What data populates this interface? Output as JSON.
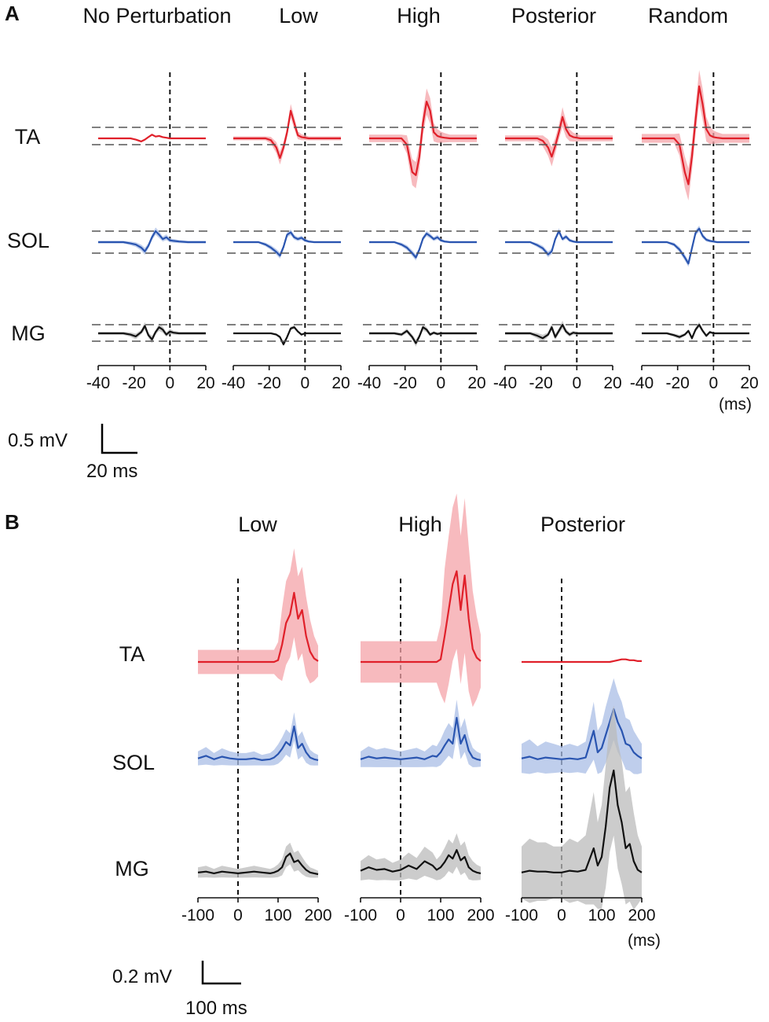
{
  "panel_a": {
    "letter": "A",
    "units_label": "(ms)",
    "scale_bar": {
      "amplitude_label": "0.5 mV",
      "time_label": "20 ms"
    },
    "conditions": [
      "No Perturbation",
      "Low",
      "High",
      "Posterior",
      "Random"
    ],
    "muscles": [
      "TA",
      "SOL",
      "MG"
    ],
    "tick_labels": [
      "-40",
      "-20",
      "0",
      "20"
    ]
  },
  "panel_b": {
    "letter": "B",
    "units_label": "(ms)",
    "scale_bar": {
      "amplitude_label": "0.2 mV",
      "time_label": "100 ms"
    },
    "conditions": [
      "Low",
      "High",
      "Posterior"
    ],
    "muscles": [
      "TA",
      "SOL",
      "MG"
    ],
    "tick_labels": [
      "-100",
      "0",
      "100",
      "200"
    ]
  },
  "colors": {
    "TA": "#e0202a",
    "SOL": "#2a55b0",
    "MG": "#111111",
    "TA_band": "#f4a3a8",
    "SOL_band": "#a9bde6",
    "MG_band": "#bbbbbb"
  },
  "chart_data": [
    {
      "type": "line",
      "title": "A",
      "xlabel": "(ms)",
      "ylabel": "0.5 mV",
      "xlim": [
        -40,
        20
      ],
      "xticks": [
        -40,
        -20,
        0,
        20
      ],
      "conditions": [
        "No Perturbation",
        "Low",
        "High",
        "Posterior",
        "Random"
      ],
      "x": [
        -40,
        -35,
        -30,
        -26,
        -22,
        -19,
        -16,
        -14,
        -12,
        -10,
        -8,
        -6,
        -4,
        -2,
        0,
        2,
        5,
        10,
        15,
        20
      ],
      "series": [
        {
          "name": "No Perturbation TA",
          "values": [
            0,
            0,
            0,
            0,
            0,
            -0.02,
            -0.05,
            -0.02,
            0.02,
            0.06,
            0.03,
            0.04,
            0.02,
            0.01,
            0,
            0,
            0,
            0,
            0,
            0
          ],
          "band": 0.02
        },
        {
          "name": "No Perturbation SOL",
          "values": [
            0,
            0,
            0,
            0,
            -0.02,
            -0.04,
            -0.09,
            -0.15,
            -0.06,
            0.08,
            0.18,
            0.12,
            0.05,
            0.08,
            0.03,
            0.02,
            0.01,
            0,
            0,
            0
          ],
          "band": 0.05
        },
        {
          "name": "No Perturbation MG",
          "values": [
            0,
            0,
            0,
            0,
            -0.02,
            -0.05,
            0.02,
            0.12,
            -0.03,
            -0.1,
            0.02,
            0.1,
            0.06,
            -0.02,
            0.03,
            0.01,
            0,
            0,
            0,
            0
          ],
          "band": 0.06
        },
        {
          "name": "Low TA",
          "values": [
            0,
            0,
            0,
            0,
            0,
            -0.03,
            -0.15,
            -0.32,
            -0.15,
            0.1,
            0.45,
            0.25,
            0.05,
            0.02,
            0.01,
            0,
            0,
            0,
            0,
            0
          ],
          "band": 0.08
        },
        {
          "name": "Low SOL",
          "values": [
            0,
            0,
            0,
            0,
            -0.04,
            -0.09,
            -0.16,
            -0.22,
            -0.08,
            0.12,
            0.16,
            0.08,
            0.05,
            0.07,
            0.03,
            0.01,
            0,
            0,
            0,
            0
          ],
          "band": 0.04
        },
        {
          "name": "Low MG",
          "values": [
            0,
            0,
            0,
            0,
            0,
            0,
            -0.02,
            -0.06,
            -0.18,
            -0.06,
            0.08,
            0.1,
            0.03,
            -0.02,
            0,
            0,
            0,
            0,
            0,
            0
          ],
          "band": 0.03
        },
        {
          "name": "High TA",
          "values": [
            0,
            0,
            0,
            0,
            0,
            -0.1,
            -0.55,
            -0.6,
            -0.3,
            0.25,
            0.6,
            0.45,
            0.1,
            0.04,
            0.02,
            0.01,
            0,
            0,
            0,
            0
          ],
          "band": 0.15
        },
        {
          "name": "High SOL",
          "values": [
            0,
            0,
            0,
            0,
            -0.04,
            -0.09,
            -0.18,
            -0.25,
            -0.12,
            0.06,
            0.14,
            0.1,
            0.05,
            0.08,
            0.03,
            0.01,
            0,
            0,
            0,
            0
          ],
          "band": 0.04
        },
        {
          "name": "High MG",
          "values": [
            0,
            0,
            0,
            0,
            -0.02,
            0.04,
            -0.06,
            -0.16,
            -0.05,
            0.1,
            0.06,
            -0.02,
            0.01,
            -0.01,
            0,
            0,
            0,
            0,
            0,
            0
          ],
          "band": 0.05
        },
        {
          "name": "Posterior TA",
          "values": [
            0,
            0,
            0,
            0,
            0,
            -0.04,
            -0.15,
            -0.3,
            -0.12,
            0.1,
            0.35,
            0.15,
            0.05,
            0.02,
            0.01,
            0,
            0,
            0,
            0,
            0
          ],
          "band": 0.12
        },
        {
          "name": "Posterior SOL",
          "values": [
            0,
            0,
            0,
            0,
            -0.05,
            -0.1,
            -0.2,
            -0.15,
            0.05,
            0.18,
            0.05,
            0.09,
            0.03,
            0.01,
            0,
            0,
            0,
            0,
            0,
            0
          ],
          "band": 0.04
        },
        {
          "name": "Posterior MG",
          "values": [
            0,
            0,
            0,
            0,
            -0.04,
            -0.08,
            -0.02,
            0.1,
            -0.06,
            0.04,
            0.14,
            0.03,
            -0.02,
            0.01,
            0,
            0,
            0,
            0,
            0,
            0
          ],
          "band": 0.06
        },
        {
          "name": "Random TA",
          "values": [
            0,
            0,
            0,
            0,
            0,
            -0.1,
            -0.55,
            -0.75,
            -0.3,
            0.3,
            0.85,
            0.55,
            0.15,
            0.05,
            0.02,
            0.01,
            0,
            0,
            0,
            0
          ],
          "band": 0.18
        },
        {
          "name": "Random SOL",
          "values": [
            0,
            0,
            0,
            0,
            -0.04,
            -0.12,
            -0.25,
            -0.35,
            -0.1,
            0.15,
            0.22,
            0.1,
            0.04,
            0.02,
            0.01,
            0,
            0,
            0,
            0,
            0
          ],
          "band": 0.04
        },
        {
          "name": "Random MG",
          "values": [
            0,
            0,
            0,
            0,
            -0.03,
            -0.06,
            -0.02,
            0.04,
            -0.08,
            0.06,
            0.14,
            0.04,
            -0.04,
            0.02,
            0,
            0,
            0,
            0,
            0,
            0
          ],
          "band": 0.04
        }
      ]
    },
    {
      "type": "line",
      "title": "B",
      "xlabel": "(ms)",
      "ylabel": "0.2 mV",
      "xlim": [
        -100,
        200
      ],
      "xticks": [
        -100,
        0,
        100,
        200
      ],
      "conditions": [
        "Low",
        "High",
        "Posterior"
      ],
      "x": [
        -100,
        -80,
        -60,
        -40,
        -20,
        0,
        20,
        40,
        60,
        80,
        90,
        100,
        110,
        120,
        130,
        140,
        150,
        160,
        170,
        180,
        190,
        200
      ],
      "series": [
        {
          "name": "Low TA",
          "values": [
            0,
            0,
            0,
            0,
            0,
            0,
            0,
            0,
            0,
            0,
            0,
            0.02,
            0.2,
            0.45,
            0.55,
            0.8,
            0.5,
            0.6,
            0.3,
            0.12,
            0.04,
            0.01
          ],
          "band": 0.35
        },
        {
          "name": "Low SOL",
          "values": [
            0.03,
            0.06,
            0.02,
            0.05,
            0.03,
            0.02,
            0.02,
            0.03,
            0.01,
            0.02,
            0.04,
            0.08,
            0.14,
            0.22,
            0.18,
            0.4,
            0.15,
            0.2,
            0.1,
            0.04,
            0.02,
            0.01
          ],
          "band": 0.12
        },
        {
          "name": "Low MG",
          "values": [
            0.02,
            0.03,
            0.01,
            0.03,
            0.02,
            0.01,
            0.02,
            0.03,
            0.02,
            0.01,
            0.02,
            0.04,
            0.08,
            0.2,
            0.24,
            0.14,
            0.16,
            0.1,
            0.05,
            0.02,
            0.01,
            0
          ],
          "band": 0.1
        },
        {
          "name": "High TA",
          "values": [
            0,
            0,
            0,
            0,
            0,
            0,
            0,
            0,
            0,
            0,
            0,
            0.03,
            0.3,
            0.6,
            0.9,
            1.05,
            0.6,
            1.0,
            0.5,
            0.15,
            0.05,
            0.01
          ],
          "band": 0.6
        },
        {
          "name": "High SOL",
          "values": [
            0.02,
            0.05,
            0.03,
            0.04,
            0.03,
            0.02,
            0.03,
            0.04,
            0.02,
            0.06,
            0.05,
            0.1,
            0.18,
            0.25,
            0.2,
            0.5,
            0.2,
            0.3,
            0.12,
            0.04,
            0.02,
            0.01
          ],
          "band": 0.15
        },
        {
          "name": "High MG",
          "values": [
            0.04,
            0.08,
            0.05,
            0.06,
            0.03,
            0.05,
            0.1,
            0.06,
            0.15,
            0.1,
            0.05,
            0.08,
            0.14,
            0.22,
            0.18,
            0.28,
            0.16,
            0.2,
            0.08,
            0.04,
            0.02,
            0.01
          ],
          "band": 0.15
        },
        {
          "name": "Posterior TA",
          "values": [
            0,
            0,
            0,
            0,
            0,
            0,
            0,
            0,
            0,
            0,
            0,
            0,
            0,
            0,
            0.01,
            0.02,
            0.03,
            0.03,
            0.02,
            0.02,
            0.01,
            0.01
          ],
          "band": 0.01
        },
        {
          "name": "Posterior SOL",
          "values": [
            0.03,
            0.05,
            0.02,
            0.04,
            0.03,
            0.02,
            0.03,
            0.02,
            0.04,
            0.35,
            0.1,
            0.15,
            0.3,
            0.45,
            0.6,
            0.45,
            0.35,
            0.2,
            0.18,
            0.1,
            0.06,
            0.03
          ],
          "band": 0.25
        },
        {
          "name": "Posterior MG",
          "values": [
            0.02,
            0.04,
            0.03,
            0.03,
            0.02,
            0.02,
            0.04,
            0.03,
            0.05,
            0.3,
            0.1,
            0.2,
            0.55,
            1.0,
            1.2,
            0.8,
            0.6,
            0.3,
            0.35,
            0.15,
            0.05,
            0.02
          ],
          "band": 0.5
        }
      ]
    }
  ]
}
